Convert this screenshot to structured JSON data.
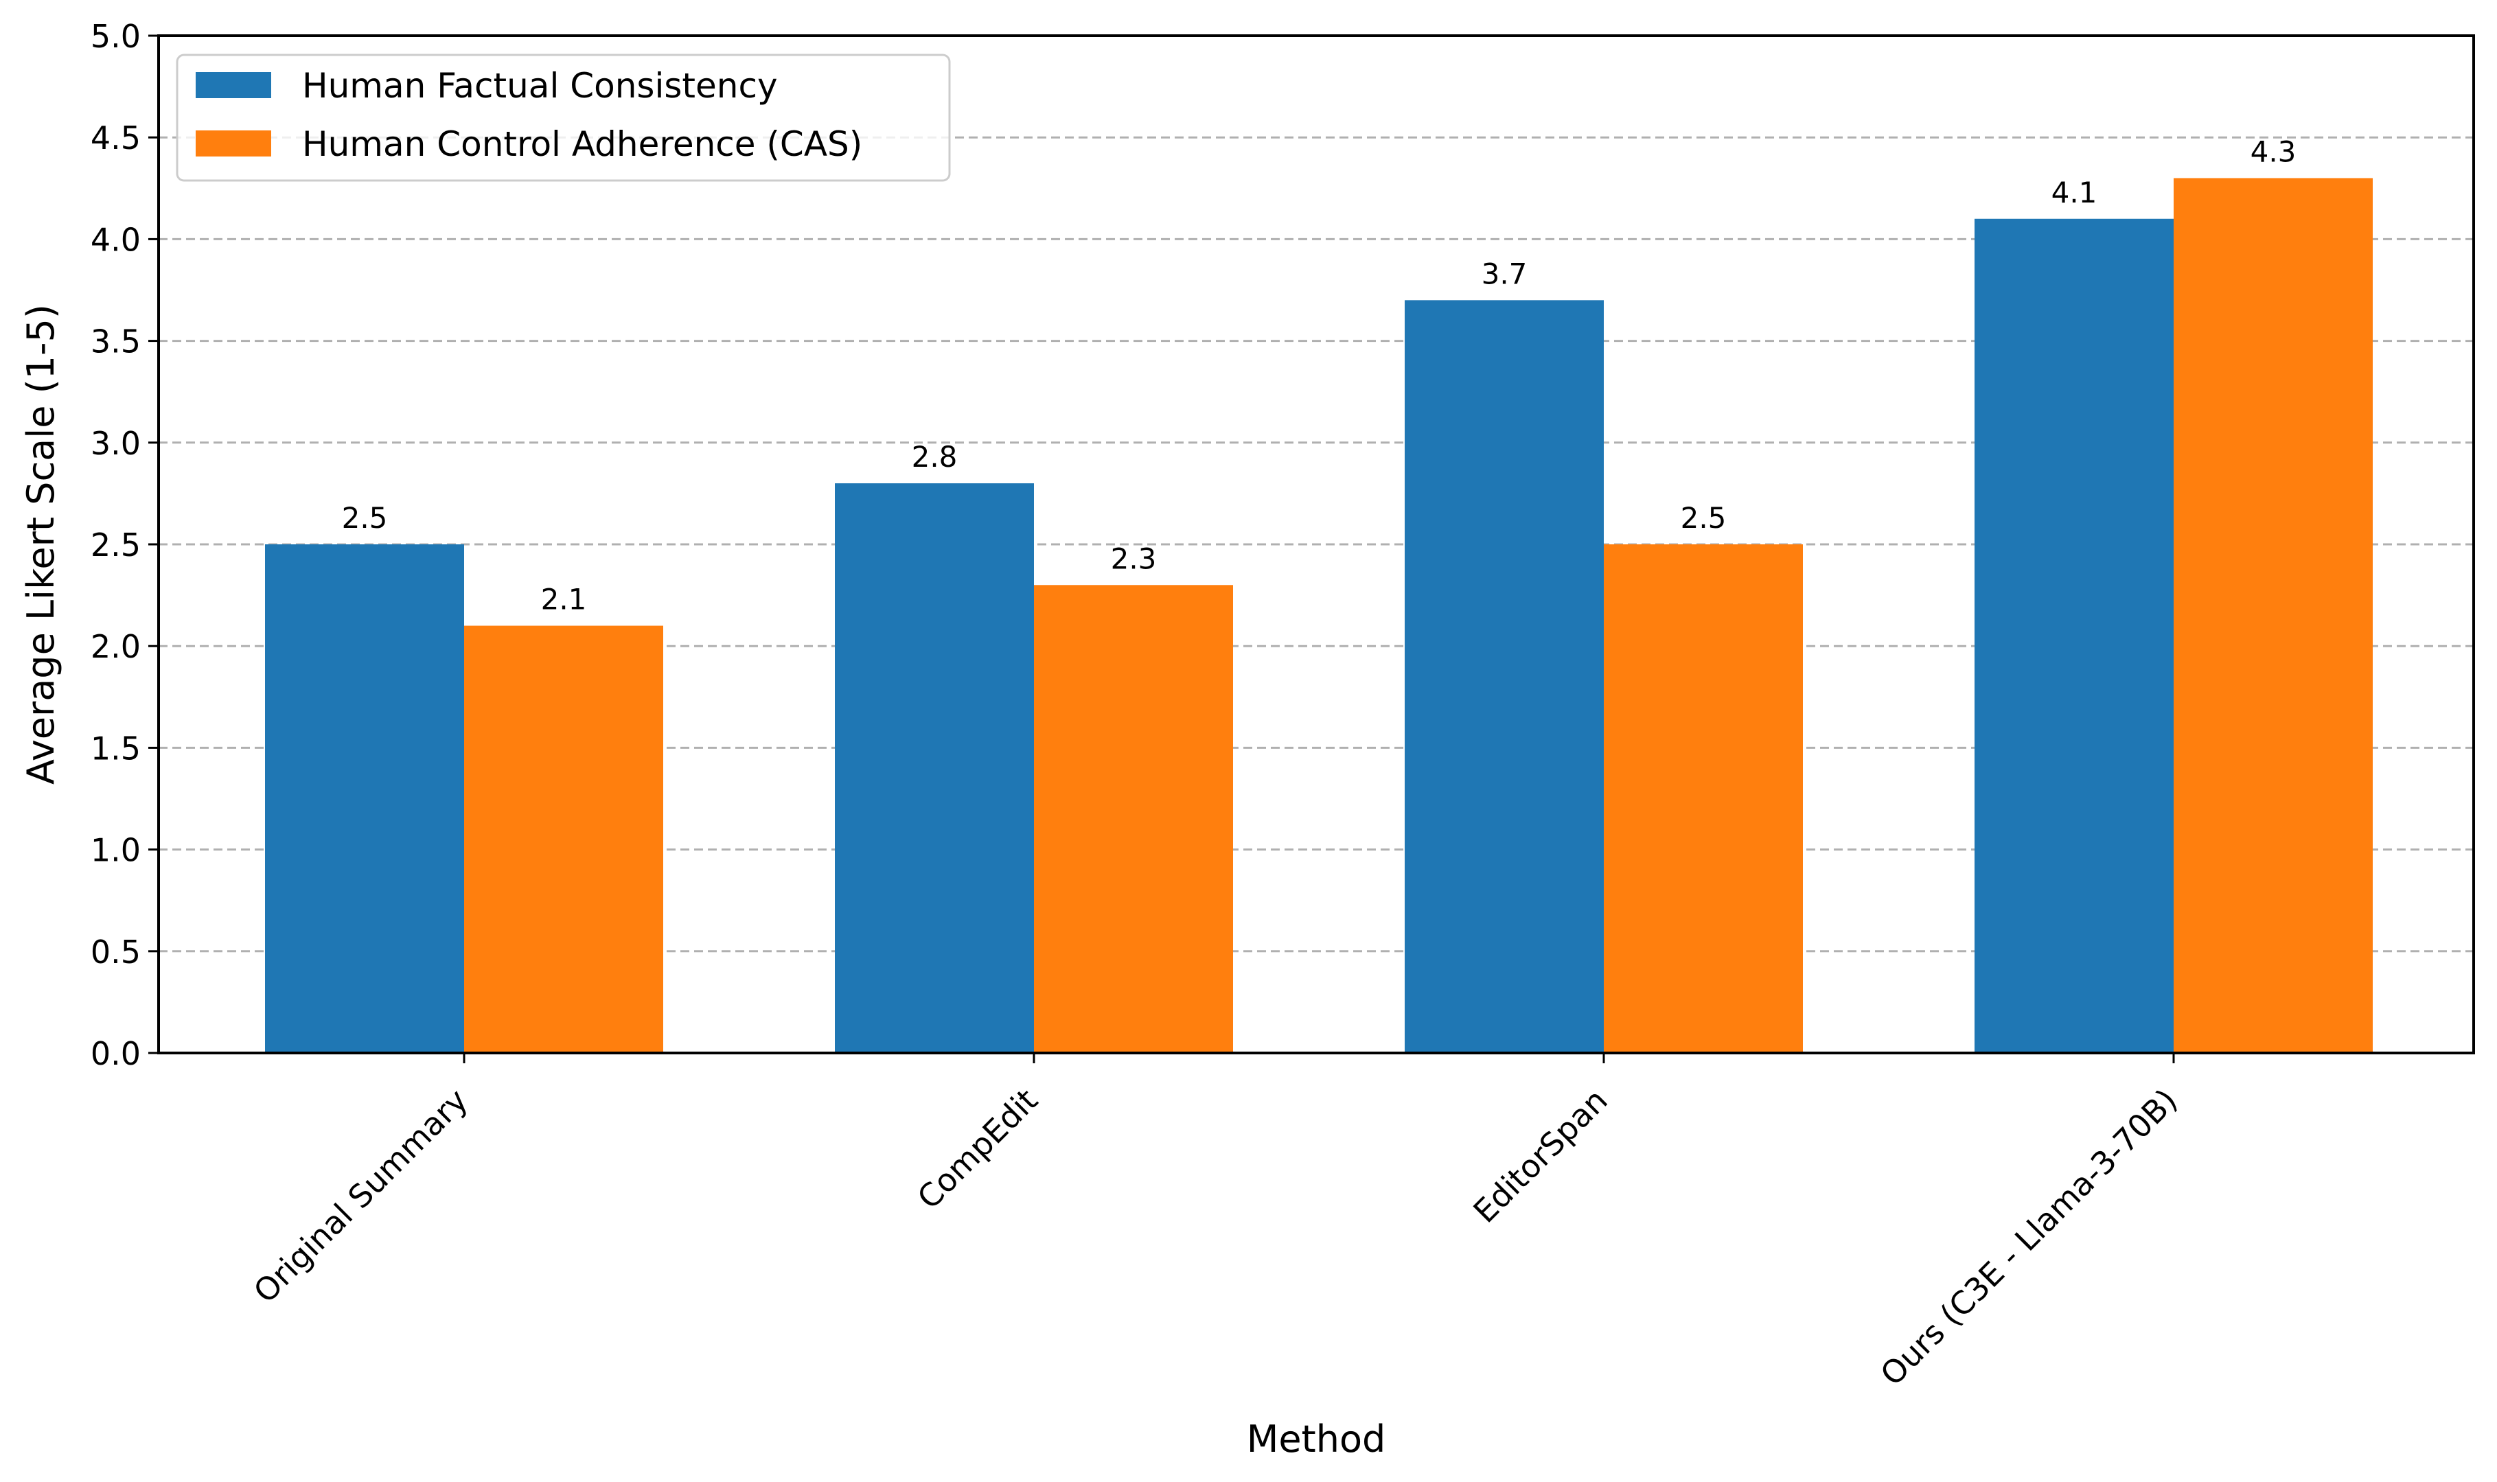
{
  "chart_data": {
    "type": "bar",
    "title": "",
    "xlabel": "Method",
    "ylabel": "Average Likert Scale (1-5)",
    "ylim": [
      0,
      5
    ],
    "yticks": [
      "0.0",
      "0.5",
      "1.0",
      "1.5",
      "2.0",
      "2.5",
      "3.0",
      "3.5",
      "4.0",
      "4.5",
      "5.0"
    ],
    "ytick_values": [
      0,
      0.5,
      1,
      1.5,
      2,
      2.5,
      3,
      3.5,
      4,
      4.5,
      5
    ],
    "grid": "y-dashed",
    "legend_position": "top-left",
    "categories": [
      "Original Summary",
      "CompEdit",
      "EditorSpan",
      "Ours (C3E - Llama-3-70B)"
    ],
    "series": [
      {
        "name": "Human Factual Consistency",
        "color": "#1f77b4",
        "values": [
          2.5,
          2.8,
          3.7,
          4.1
        ],
        "labels": [
          "2.5",
          "2.8",
          "3.7",
          "4.1"
        ]
      },
      {
        "name": "Human Control Adherence (CAS)",
        "color": "#ff7f0e",
        "values": [
          2.1,
          2.3,
          2.5,
          4.3
        ],
        "labels": [
          "2.1",
          "2.3",
          "2.5",
          "4.3"
        ]
      }
    ]
  }
}
